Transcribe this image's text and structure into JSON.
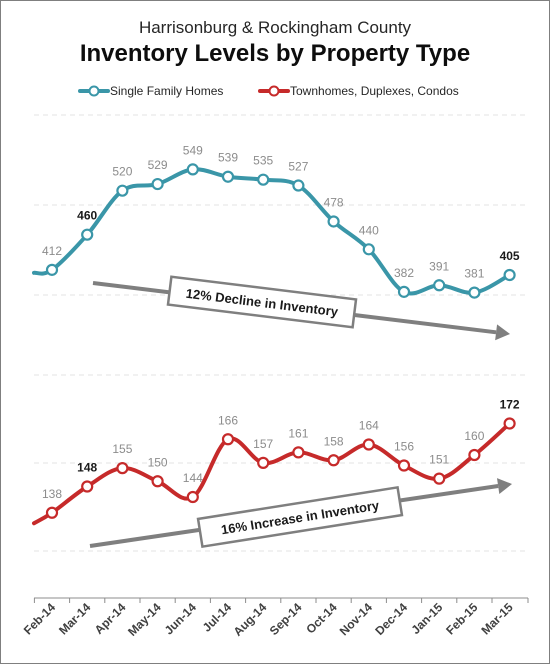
{
  "chart_data": {
    "type": "line",
    "subtitle": "Harrisonburg & Rockingham County",
    "title": "Inventory Levels by Property Type",
    "categories": [
      "Feb-14",
      "Mar-14",
      "Apr-14",
      "May-14",
      "Jun-14",
      "Jul-14",
      "Aug-14",
      "Sep-14",
      "Oct-14",
      "Nov-14",
      "Dec-14",
      "Jan-15",
      "Feb-15",
      "Mar-15"
    ],
    "series": [
      {
        "name": "Single Family Homes",
        "color": "#3a96a8",
        "values": [
          412,
          460,
          520,
          529,
          549,
          539,
          535,
          527,
          478,
          440,
          382,
          391,
          381,
          405
        ],
        "lead_in": 408,
        "ylim": [
          330,
          630
        ]
      },
      {
        "name": "Townhomes, Duplexes, Condos",
        "color": "#c62a2a",
        "values": [
          138,
          148,
          155,
          150,
          144,
          166,
          157,
          161,
          158,
          164,
          156,
          151,
          160,
          172
        ],
        "lead_in": 134,
        "ylim": [
          120,
          200
        ]
      }
    ],
    "bold_labels": [
      "Mar-14",
      "Mar-15"
    ],
    "annotations": [
      {
        "text": "12% Decline in Inventory"
      },
      {
        "text": "16% Increase in Inventory"
      }
    ],
    "legend_position": "top",
    "grid": "horizontal dashed"
  }
}
